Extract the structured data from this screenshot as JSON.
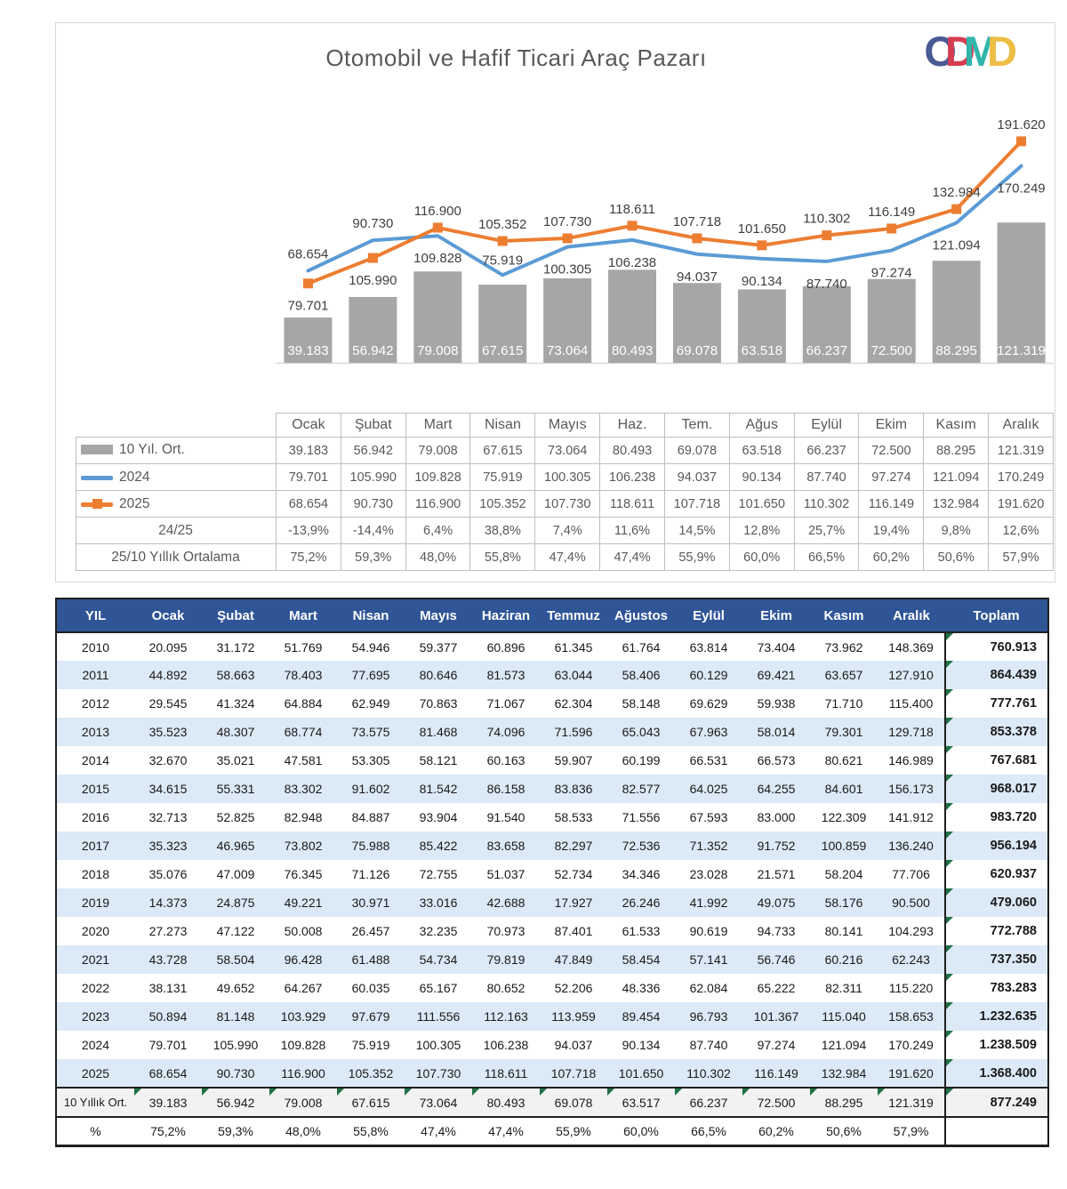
{
  "logo": {
    "letters": [
      {
        "ch": "O",
        "color": "#4a5a94"
      },
      {
        "ch": "D",
        "color": "#d63c50"
      },
      {
        "ch": "M",
        "color": "#2fb5aa"
      },
      {
        "ch": "D",
        "color": "#eebd45"
      }
    ]
  },
  "chart_data": {
    "type": "combo-bar-line",
    "title": "Otomobil ve Hafif Ticari Araç Pazarı",
    "categories": [
      "Ocak",
      "Şubat",
      "Mart",
      "Nisan",
      "Mayıs",
      "Haz.",
      "Tem.",
      "Ağus",
      "Eylül",
      "Ekim",
      "Kasım",
      "Aralık"
    ],
    "series": [
      {
        "name": "10 Yıl. Ort.",
        "type": "bar",
        "color": "#a6a6a6",
        "values": [
          39183,
          56942,
          79008,
          67615,
          73064,
          80493,
          69078,
          63518,
          66237,
          72500,
          88295,
          121319
        ]
      },
      {
        "name": "2024",
        "type": "line",
        "color": "#5b9bd5",
        "values": [
          79701,
          105990,
          109828,
          75919,
          100305,
          106238,
          94037,
          90134,
          87740,
          97274,
          121094,
          170249
        ]
      },
      {
        "name": "2025",
        "type": "line",
        "marker": "square",
        "color": "#ed7d31",
        "values": [
          68654,
          90730,
          116900,
          105352,
          107730,
          118611,
          107718,
          101650,
          110302,
          116149,
          132984,
          191620
        ]
      }
    ],
    "ylim": [
      0,
      260000
    ],
    "gridlines": false,
    "legend_position": "data-table-bottom"
  },
  "legend_table": {
    "columns": [
      "Ocak",
      "Şubat",
      "Mart",
      "Nisan",
      "Mayıs",
      "Haz.",
      "Tem.",
      "Ağus",
      "Eylül",
      "Ekim",
      "Kasım",
      "Aralık"
    ],
    "rows": [
      {
        "label": "10 Yıl. Ort.",
        "swatch": "bar",
        "values": [
          "39.183",
          "56.942",
          "79.008",
          "67.615",
          "73.064",
          "80.493",
          "69.078",
          "63.518",
          "66.237",
          "72.500",
          "88.295",
          "121.319"
        ]
      },
      {
        "label": "2024",
        "swatch": "line-2024",
        "values": [
          "79.701",
          "105.990",
          "109.828",
          "75.919",
          "100.305",
          "106.238",
          "94.037",
          "90.134",
          "87.740",
          "97.274",
          "121.094",
          "170.249"
        ]
      },
      {
        "label": "2025",
        "swatch": "line-2025",
        "values": [
          "68.654",
          "90.730",
          "116.900",
          "105.352",
          "107.730",
          "118.611",
          "107.718",
          "101.650",
          "110.302",
          "116.149",
          "132.984",
          "191.620"
        ]
      },
      {
        "label": "24/25",
        "swatch": null,
        "values": [
          "-13,9%",
          "-14,4%",
          "6,4%",
          "38,8%",
          "7,4%",
          "11,6%",
          "14,5%",
          "12,8%",
          "25,7%",
          "19,4%",
          "9,8%",
          "12,6%"
        ]
      },
      {
        "label": "25/10 Yıllık Ortalama",
        "swatch": null,
        "values": [
          "75,2%",
          "59,3%",
          "48,0%",
          "55,8%",
          "47,4%",
          "47,4%",
          "55,9%",
          "60,0%",
          "66,5%",
          "60,2%",
          "50,6%",
          "57,9%"
        ]
      }
    ]
  },
  "main_table": {
    "columns": [
      "YIL",
      "Ocak",
      "Şubat",
      "Mart",
      "Nisan",
      "Mayıs",
      "Haziran",
      "Temmuz",
      "Ağustos",
      "Eylül",
      "Ekim",
      "Kasım",
      "Aralık",
      "Toplam"
    ],
    "rows": [
      {
        "year": "2010",
        "values": [
          "20.095",
          "31.172",
          "51.769",
          "54.946",
          "59.377",
          "60.896",
          "61.345",
          "61.764",
          "63.814",
          "73.404",
          "73.962",
          "148.369"
        ],
        "total": "760.913"
      },
      {
        "year": "2011",
        "values": [
          "44.892",
          "58.663",
          "78.403",
          "77.695",
          "80.646",
          "81.573",
          "63.044",
          "58.406",
          "60.129",
          "69.421",
          "63.657",
          "127.910"
        ],
        "total": "864.439"
      },
      {
        "year": "2012",
        "values": [
          "29.545",
          "41.324",
          "64.884",
          "62.949",
          "70.863",
          "71.067",
          "62.304",
          "58.148",
          "69.629",
          "59.938",
          "71.710",
          "115.400"
        ],
        "total": "777.761"
      },
      {
        "year": "2013",
        "values": [
          "35.523",
          "48.307",
          "68.774",
          "73.575",
          "81.468",
          "74.096",
          "71.596",
          "65.043",
          "67.963",
          "58.014",
          "79.301",
          "129.718"
        ],
        "total": "853.378"
      },
      {
        "year": "2014",
        "values": [
          "32.670",
          "35.021",
          "47.581",
          "53.305",
          "58.121",
          "60.163",
          "59.907",
          "60.199",
          "66.531",
          "66.573",
          "80.621",
          "146.989"
        ],
        "total": "767.681"
      },
      {
        "year": "2015",
        "values": [
          "34.615",
          "55.331",
          "83.302",
          "91.602",
          "81.542",
          "86.158",
          "83.836",
          "82.577",
          "64.025",
          "64.255",
          "84.601",
          "156.173"
        ],
        "total": "968.017"
      },
      {
        "year": "2016",
        "values": [
          "32.713",
          "52.825",
          "82.948",
          "84.887",
          "93.904",
          "91.540",
          "58.533",
          "71.556",
          "67.593",
          "83.000",
          "122.309",
          "141.912"
        ],
        "total": "983.720"
      },
      {
        "year": "2017",
        "values": [
          "35.323",
          "46.965",
          "73.802",
          "75.988",
          "85.422",
          "83.658",
          "82.297",
          "72.536",
          "71.352",
          "91.752",
          "100.859",
          "136.240"
        ],
        "total": "956.194"
      },
      {
        "year": "2018",
        "values": [
          "35.076",
          "47.009",
          "76.345",
          "71.126",
          "72.755",
          "51.037",
          "52.734",
          "34.346",
          "23.028",
          "21.571",
          "58.204",
          "77.706"
        ],
        "total": "620.937"
      },
      {
        "year": "2019",
        "values": [
          "14.373",
          "24.875",
          "49.221",
          "30.971",
          "33.016",
          "42.688",
          "17.927",
          "26.246",
          "41.992",
          "49.075",
          "58.176",
          "90.500"
        ],
        "total": "479.060"
      },
      {
        "year": "2020",
        "values": [
          "27.273",
          "47.122",
          "50.008",
          "26.457",
          "32.235",
          "70.973",
          "87.401",
          "61.533",
          "90.619",
          "94.733",
          "80.141",
          "104.293"
        ],
        "total": "772.788"
      },
      {
        "year": "2021",
        "values": [
          "43.728",
          "58.504",
          "96.428",
          "61.488",
          "54.734",
          "79.819",
          "47.849",
          "58.454",
          "57.141",
          "56.746",
          "60.216",
          "62.243"
        ],
        "total": "737.350"
      },
      {
        "year": "2022",
        "values": [
          "38.131",
          "49.652",
          "64.267",
          "60.035",
          "65.167",
          "80.652",
          "52.206",
          "48.336",
          "62.084",
          "65.222",
          "82.311",
          "115.220"
        ],
        "total": "783.283"
      },
      {
        "year": "2023",
        "values": [
          "50.894",
          "81.148",
          "103.929",
          "97.679",
          "111.556",
          "112.163",
          "113.959",
          "89.454",
          "96.793",
          "101.367",
          "115.040",
          "158.653"
        ],
        "total": "1.232.635"
      },
      {
        "year": "2024",
        "values": [
          "79.701",
          "105.990",
          "109.828",
          "75.919",
          "100.305",
          "106.238",
          "94.037",
          "90.134",
          "87.740",
          "97.274",
          "121.094",
          "170.249"
        ],
        "total": "1.238.509"
      },
      {
        "year": "2025",
        "values": [
          "68.654",
          "90.730",
          "116.900",
          "105.352",
          "107.730",
          "118.611",
          "107.718",
          "101.650",
          "110.302",
          "116.149",
          "132.984",
          "191.620"
        ],
        "total": "1.368.400"
      }
    ],
    "footer": [
      {
        "label": "10 Yıllık Ort.",
        "values": [
          "39.183",
          "56.942",
          "79.008",
          "67.615",
          "73.064",
          "80.493",
          "69.078",
          "63.517",
          "66.237",
          "72.500",
          "88.295",
          "121.319"
        ],
        "total": "877.249",
        "flags": true
      },
      {
        "label": "%",
        "values": [
          "75,2%",
          "59,3%",
          "48,0%",
          "55,8%",
          "47,4%",
          "47,4%",
          "55,9%",
          "60,0%",
          "66,5%",
          "60,2%",
          "50,6%",
          "57,9%"
        ],
        "total": "",
        "flags": false
      }
    ]
  },
  "colors": {
    "title": "#595959",
    "bar": "#a6a6a6",
    "line_2024": "#5b9bd5",
    "line_2025": "#ed7d31",
    "header_bg": "#2f5597",
    "row_alt": "#dce9f6",
    "footer_bg": "#f2f2f2",
    "flag": "#1e7145"
  }
}
